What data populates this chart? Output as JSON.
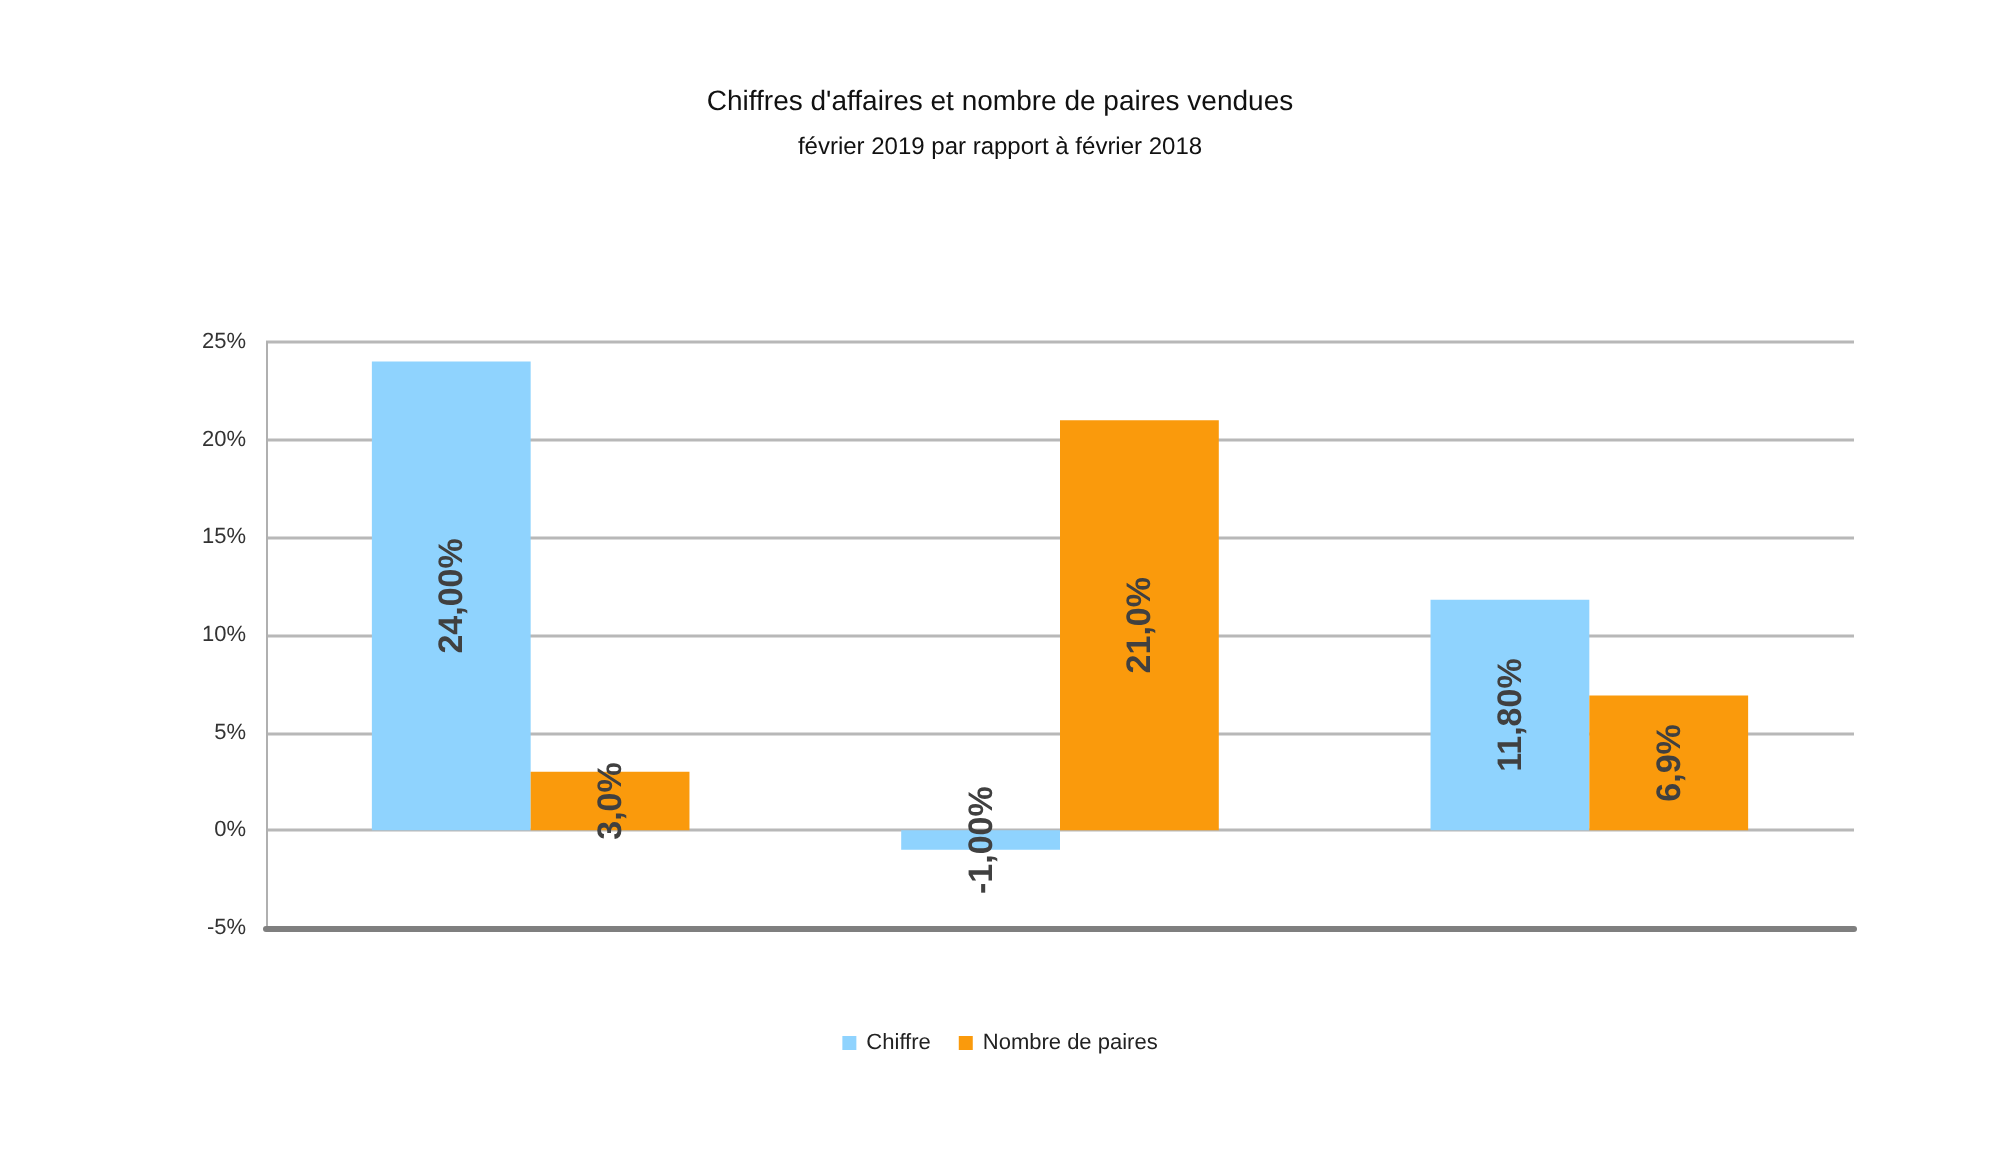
{
  "chart_data": {
    "type": "bar",
    "title": "Chiffres d'affaires et nombre de paires vendues",
    "subtitle": "février 2019 par rapport à février 2018",
    "categories": [
      null,
      null,
      null
    ],
    "series": [
      {
        "name": "Chiffre",
        "color": "#8fd3fe",
        "values": [
          24.0,
          -1.0,
          11.8
        ],
        "value_labels": [
          "24,00%",
          "-1,00%",
          "11,80%"
        ]
      },
      {
        "name": "Nombre de paires",
        "color": "#fa9a0c",
        "values": [
          3.0,
          21.0,
          6.9
        ],
        "value_labels": [
          "3,0%",
          "21,0%",
          "6,9%"
        ]
      }
    ],
    "ylim": [
      -5,
      25
    ],
    "yticks": [
      {
        "value": -5,
        "label": "-5%"
      },
      {
        "value": 0,
        "label": "0%"
      },
      {
        "value": 5,
        "label": "5%"
      },
      {
        "value": 10,
        "label": "10%"
      },
      {
        "value": 15,
        "label": "15%"
      },
      {
        "value": 20,
        "label": "20%"
      },
      {
        "value": 25,
        "label": "25%"
      }
    ],
    "grid": "y",
    "legend": "bottom"
  }
}
